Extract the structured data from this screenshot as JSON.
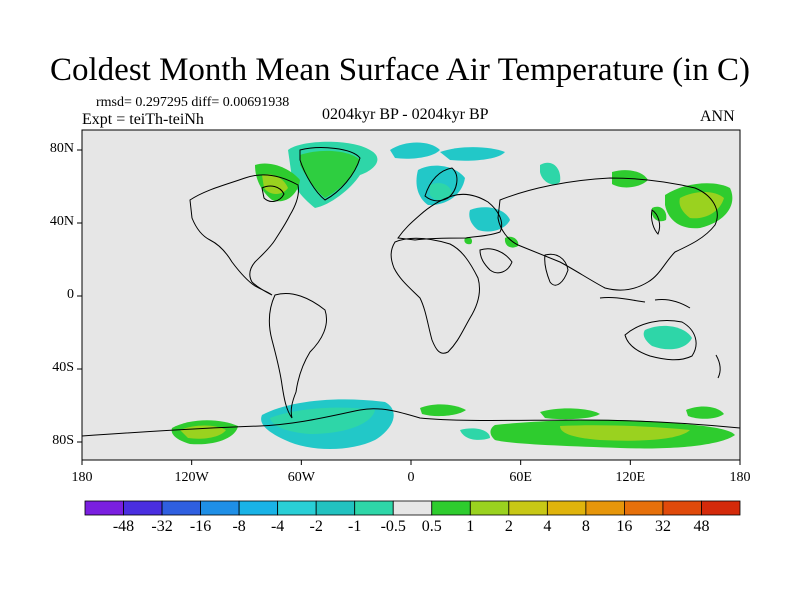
{
  "title": "Coldest Month Mean Surface Air Temperature (in C)",
  "stats": "rmsd= 0.297295  diff= 0.00691938",
  "expt": "Expt = teiTh-teiNh",
  "period": "0204kyr BP - 0204kyr BP",
  "season": "ANN",
  "lat_ticks": [
    {
      "label": "80N",
      "value": 80
    },
    {
      "label": "40N",
      "value": 40
    },
    {
      "label": "0",
      "value": 0
    },
    {
      "label": "40S",
      "value": -40
    },
    {
      "label": "80S",
      "value": -80
    }
  ],
  "lon_ticks": [
    {
      "label": "180",
      "value": -180
    },
    {
      "label": "120W",
      "value": -120
    },
    {
      "label": "60W",
      "value": -60
    },
    {
      "label": "0",
      "value": 0
    },
    {
      "label": "60E",
      "value": 60
    },
    {
      "label": "120E",
      "value": 120
    },
    {
      "label": "180",
      "value": 180
    }
  ],
  "colorbar": {
    "colors": [
      "#7a1fe0",
      "#4a2ee0",
      "#2f5fe0",
      "#1f8fe6",
      "#19b3e6",
      "#29cfd6",
      "#22c2c0",
      "#2ed6a8",
      "#e6e6e6",
      "#2ecc2e",
      "#9ad21f",
      "#c8c816",
      "#e0b40c",
      "#e6960a",
      "#e6700a",
      "#e04a0a",
      "#d42a0a"
    ],
    "labels": [
      "-48",
      "-32",
      "-16",
      "-8",
      "-4",
      "-2",
      "-1",
      "-0.5",
      "0.5",
      "1",
      "2",
      "4",
      "8",
      "16",
      "32",
      "48"
    ]
  },
  "palette": {
    "ocean_fill": "#e6e6e6",
    "cyan": "#22c8c8",
    "teal": "#2ed6a8",
    "light_green": "#2ecc2e",
    "yellow_green": "#9ad21f"
  }
}
